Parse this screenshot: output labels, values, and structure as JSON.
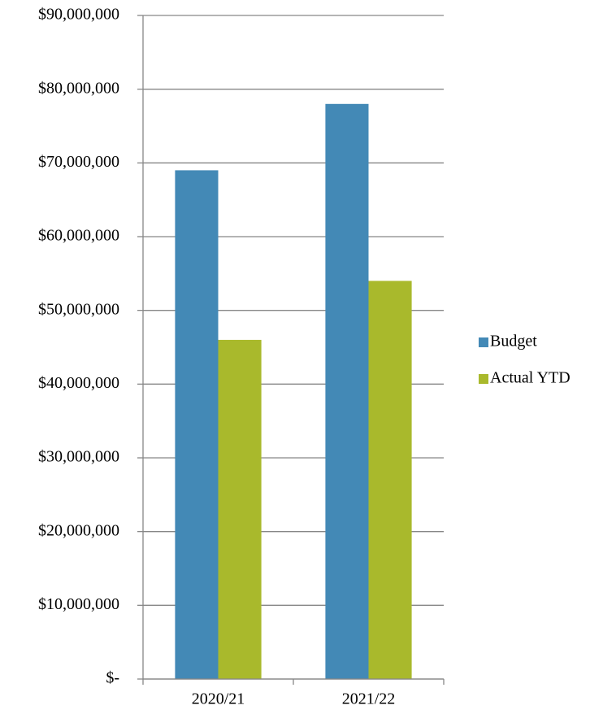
{
  "chart_data": {
    "type": "bar",
    "categories": [
      "2020/21",
      "2021/22"
    ],
    "series": [
      {
        "name": "Budget",
        "color": "#4389b6",
        "values": [
          69000000,
          78000000
        ]
      },
      {
        "name": "Actual YTD",
        "color": "#a9b92c",
        "values": [
          46000000,
          54000000
        ]
      }
    ],
    "ylim": [
      0,
      90000000
    ],
    "yticks": [
      {
        "value": 0,
        "label": "$-"
      },
      {
        "value": 10000000,
        "label": "$10,000,000"
      },
      {
        "value": 20000000,
        "label": "$20,000,000"
      },
      {
        "value": 30000000,
        "label": "$30,000,000"
      },
      {
        "value": 40000000,
        "label": "$40,000,000"
      },
      {
        "value": 50000000,
        "label": "$50,000,000"
      },
      {
        "value": 60000000,
        "label": "$60,000,000"
      },
      {
        "value": 70000000,
        "label": "$70,000,000"
      },
      {
        "value": 80000000,
        "label": "$80,000,000"
      },
      {
        "value": 90000000,
        "label": "$90,000,000"
      }
    ],
    "grid": true,
    "legend": "right"
  }
}
